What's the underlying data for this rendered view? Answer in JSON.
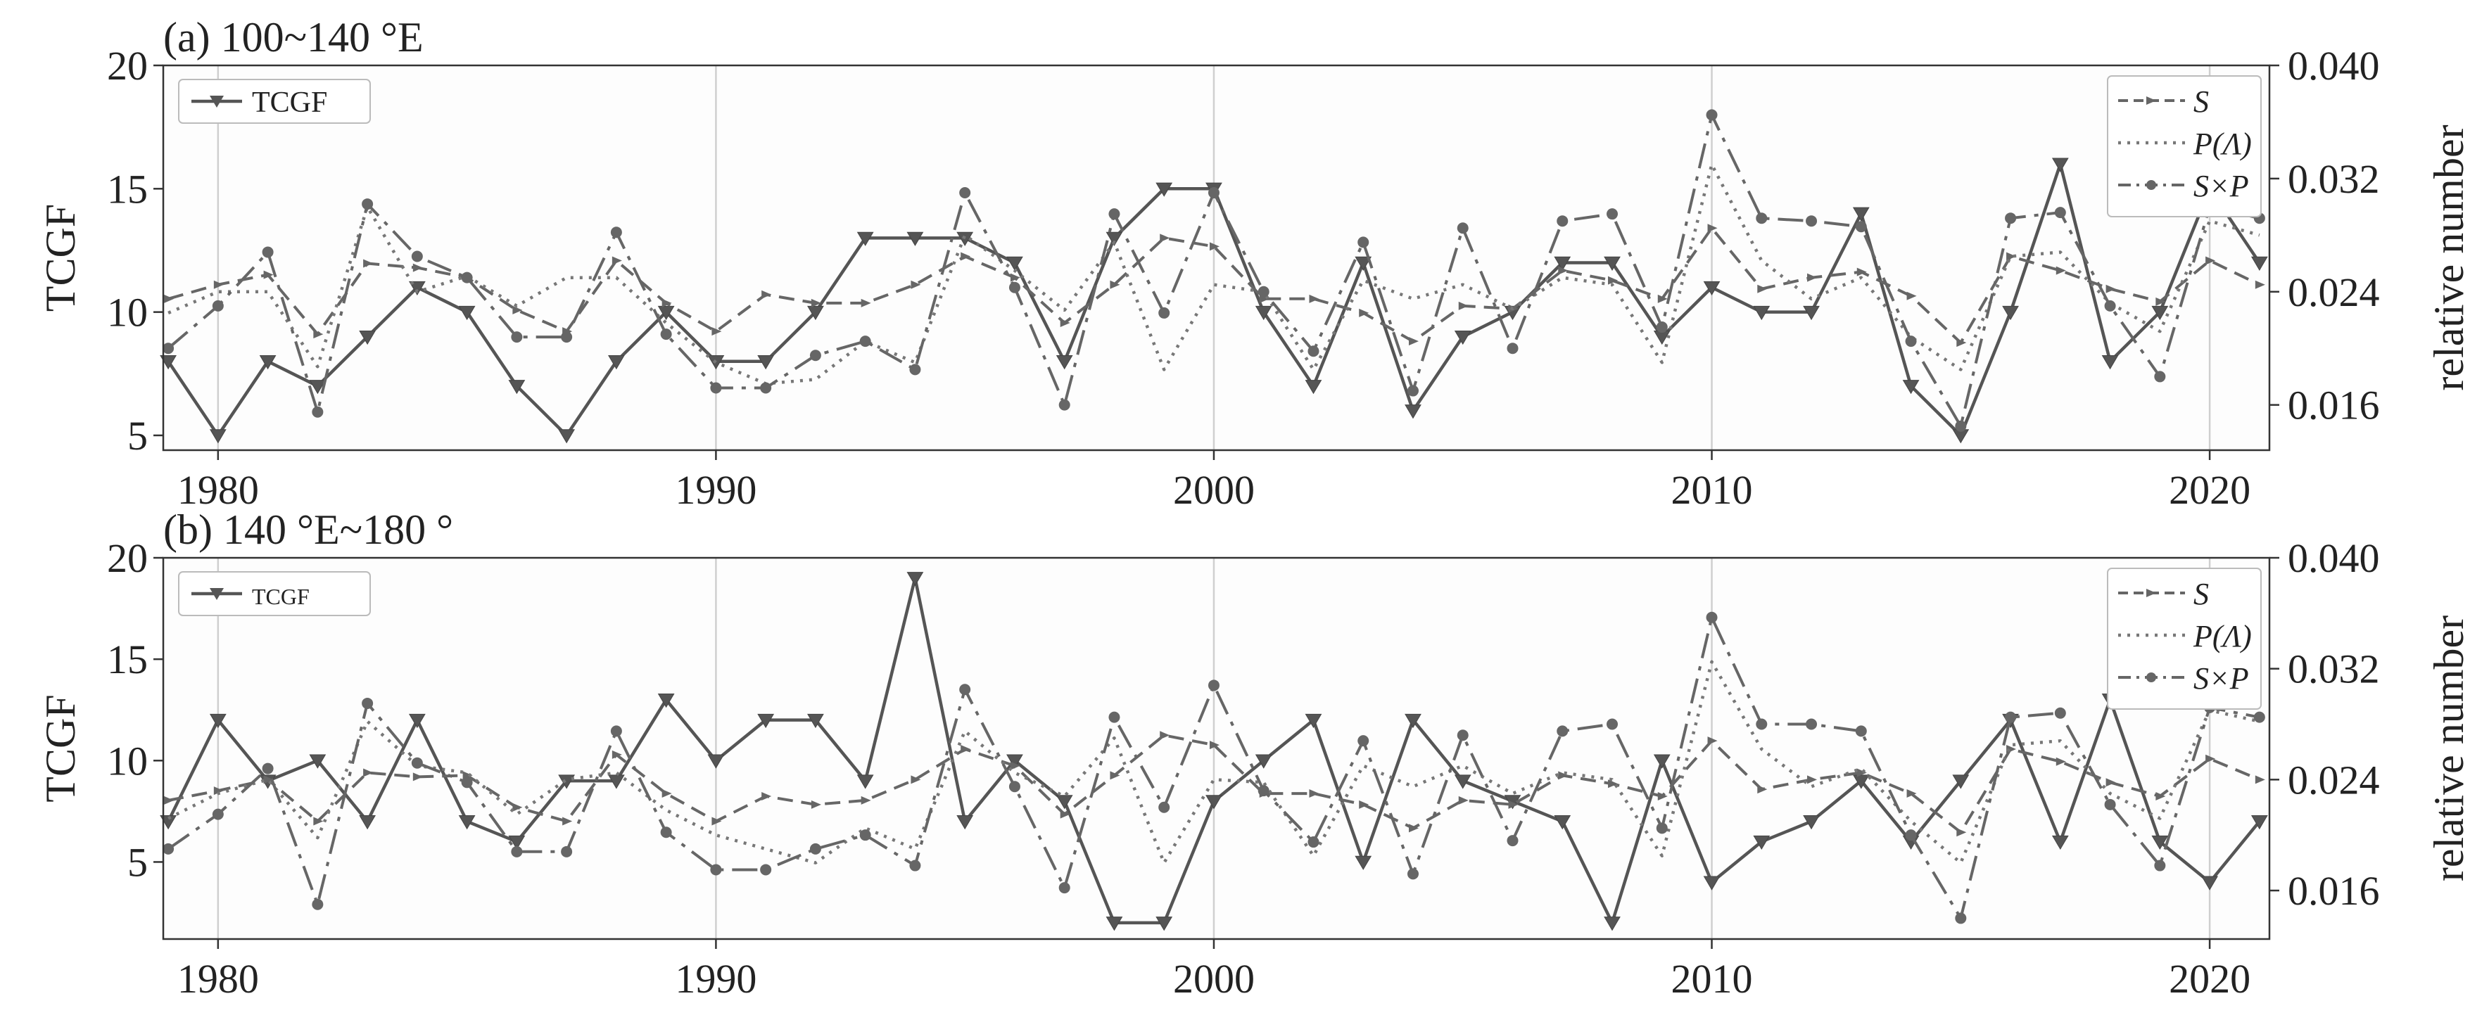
{
  "chart_data": [
    {
      "type": "line",
      "title": "(a)  100~140 °E",
      "xlim": [
        1978.9,
        2021.2
      ],
      "x_ticks": [
        1980,
        1990,
        2000,
        2010,
        2020
      ],
      "left_axis": {
        "label": "TCGF",
        "ylim": [
          4.4,
          20
        ],
        "ticks": [
          5,
          10,
          15,
          20
        ]
      },
      "right_axis": {
        "label": "relative number",
        "ylim": [
          0.0128,
          0.04
        ],
        "ticks": [
          "0.016",
          "0.024",
          "0.032",
          "0.040"
        ]
      },
      "grid": "vertical at decades",
      "legend_left": {
        "position": "top-left",
        "entries": [
          "TCGF"
        ]
      },
      "legend_right": {
        "position": "top-right",
        "entries": [
          "S",
          "P(Λ)",
          "S×P"
        ]
      },
      "years": [
        1979,
        1980,
        1981,
        1982,
        1983,
        1984,
        1985,
        1986,
        1987,
        1988,
        1989,
        1990,
        1991,
        1992,
        1993,
        1994,
        1995,
        1996,
        1997,
        1998,
        1999,
        2000,
        2001,
        2002,
        2003,
        2004,
        2005,
        2006,
        2007,
        2008,
        2009,
        2010,
        2011,
        2012,
        2013,
        2014,
        2015,
        2016,
        2017,
        2018,
        2019,
        2020,
        2021
      ],
      "series": [
        {
          "name": "TCGF",
          "axis": "left",
          "style": "solid-triangle",
          "values": [
            8,
            5,
            8,
            7,
            9,
            11,
            10,
            7,
            5,
            8,
            10,
            8,
            8,
            10,
            13,
            13,
            13,
            12,
            8,
            13,
            15,
            15,
            10,
            7,
            12,
            6,
            9,
            10,
            12,
            12,
            9,
            11,
            10,
            10,
            14,
            7,
            5,
            10,
            16,
            8,
            10,
            15,
            12
          ]
        },
        {
          "name": "S",
          "axis": "right",
          "style": "dash-arrow",
          "values": [
            0.0235,
            0.0245,
            0.0252,
            0.021,
            0.026,
            0.0257,
            0.025,
            0.0227,
            0.0212,
            0.0262,
            0.0232,
            0.0212,
            0.0238,
            0.0232,
            0.0232,
            0.0245,
            0.0265,
            0.025,
            0.0218,
            0.0245,
            0.0278,
            0.0272,
            0.0235,
            0.0235,
            0.0225,
            0.0205,
            0.023,
            0.0228,
            0.0255,
            0.0248,
            0.0235,
            0.0285,
            0.0242,
            0.025,
            0.0254,
            0.0237,
            0.0204,
            0.0265,
            0.0255,
            0.0242,
            0.0233,
            0.0262,
            0.0245
          ]
        },
        {
          "name": "P(Λ)",
          "axis": "right",
          "style": "dotted",
          "values": [
            0.0225,
            0.024,
            0.024,
            0.0187,
            0.03,
            0.024,
            0.0251,
            0.023,
            0.025,
            0.025,
            0.0218,
            0.019,
            0.0175,
            0.0178,
            0.0205,
            0.019,
            0.028,
            0.0255,
            0.0227,
            0.0275,
            0.0185,
            0.0245,
            0.024,
            0.0185,
            0.0248,
            0.0235,
            0.0245,
            0.0228,
            0.025,
            0.0245,
            0.019,
            0.033,
            0.0262,
            0.0235,
            0.025,
            0.0208,
            0.0185,
            0.0265,
            0.0268,
            0.0232,
            0.0212,
            0.029,
            0.028
          ]
        },
        {
          "name": "S×P",
          "axis": "right",
          "style": "dashdot-circle",
          "values": [
            0.02,
            0.023,
            0.0268,
            0.0155,
            0.0302,
            0.0265,
            0.025,
            0.0208,
            0.0208,
            0.0282,
            0.021,
            0.0172,
            0.0172,
            0.0195,
            0.0205,
            0.0185,
            0.031,
            0.0243,
            0.016,
            0.0295,
            0.0225,
            0.031,
            0.024,
            0.0198,
            0.0275,
            0.017,
            0.0285,
            0.02,
            0.029,
            0.0295,
            0.0215,
            0.0365,
            0.0292,
            0.029,
            0.0286,
            0.0205,
            0.0145,
            0.0292,
            0.0296,
            0.023,
            0.018,
            0.03,
            0.0292
          ]
        }
      ]
    },
    {
      "type": "line",
      "title": "(b)  140 °E~180 °",
      "xlim": [
        1978.9,
        2021.2
      ],
      "x_ticks": [
        1980,
        1990,
        2000,
        2010,
        2020
      ],
      "left_axis": {
        "label": "TCGF",
        "ylim": [
          1.2,
          20
        ],
        "ticks": [
          5,
          10,
          15,
          20
        ]
      },
      "right_axis": {
        "label": "relative number",
        "ylim": [
          0.0125,
          0.04
        ],
        "ticks": [
          "0.016",
          "0.024",
          "0.032",
          "0.040"
        ]
      },
      "grid": "vertical at decades",
      "legend_left": {
        "position": "top-left",
        "entries": [
          "TCGF"
        ]
      },
      "legend_right": {
        "position": "top-right",
        "entries": [
          "S",
          "P(Λ)",
          "S×P"
        ]
      },
      "years": [
        1979,
        1980,
        1981,
        1982,
        1983,
        1984,
        1985,
        1986,
        1987,
        1988,
        1989,
        1990,
        1991,
        1992,
        1993,
        1994,
        1995,
        1996,
        1997,
        1998,
        1999,
        2000,
        2001,
        2002,
        2003,
        2004,
        2005,
        2006,
        2007,
        2008,
        2009,
        2010,
        2011,
        2012,
        2013,
        2014,
        2015,
        2016,
        2017,
        2018,
        2019,
        2020,
        2021
      ],
      "series": [
        {
          "name": "TCGF",
          "axis": "left",
          "style": "solid-triangle",
          "values": [
            7,
            12,
            9,
            10,
            7,
            12,
            7,
            6,
            9,
            9,
            13,
            10,
            12,
            12,
            9,
            19,
            7,
            10,
            8,
            2,
            2,
            8,
            10,
            12,
            5,
            12,
            9,
            8,
            7,
            2,
            10,
            4,
            6,
            7,
            9,
            6,
            9,
            12,
            6,
            13,
            6,
            4,
            7
          ]
        },
        {
          "name": "S",
          "axis": "right",
          "style": "dash-arrow",
          "values": [
            0.0225,
            0.0232,
            0.024,
            0.021,
            0.0245,
            0.0242,
            0.0243,
            0.022,
            0.021,
            0.0258,
            0.023,
            0.021,
            0.0228,
            0.0222,
            0.0225,
            0.024,
            0.0262,
            0.025,
            0.0215,
            0.0243,
            0.0272,
            0.0265,
            0.023,
            0.023,
            0.0222,
            0.0205,
            0.0225,
            0.0222,
            0.0243,
            0.0237,
            0.0228,
            0.0268,
            0.0233,
            0.024,
            0.0245,
            0.023,
            0.0202,
            0.0262,
            0.0253,
            0.0238,
            0.0228,
            0.0255,
            0.024
          ]
        },
        {
          "name": "P(Λ)",
          "axis": "right",
          "style": "dotted",
          "values": [
            0.0212,
            0.023,
            0.024,
            0.0198,
            0.0282,
            0.025,
            0.0245,
            0.0215,
            0.024,
            0.0245,
            0.0218,
            0.02,
            0.019,
            0.018,
            0.0205,
            0.019,
            0.0275,
            0.0245,
            0.0228,
            0.027,
            0.018,
            0.024,
            0.0238,
            0.0185,
            0.025,
            0.0235,
            0.025,
            0.023,
            0.0245,
            0.024,
            0.0185,
            0.0325,
            0.0262,
            0.0235,
            0.0248,
            0.021,
            0.018,
            0.0265,
            0.0268,
            0.023,
            0.0212,
            0.029,
            0.0282
          ]
        },
        {
          "name": "S×P",
          "axis": "right",
          "style": "dashdot-circle",
          "values": [
            0.019,
            0.0215,
            0.0248,
            0.015,
            0.0295,
            0.0252,
            0.0238,
            0.0188,
            0.0188,
            0.0275,
            0.0202,
            0.0175,
            0.0175,
            0.019,
            0.02,
            0.0178,
            0.0305,
            0.0235,
            0.0162,
            0.0285,
            0.022,
            0.0308,
            0.0232,
            0.0195,
            0.0268,
            0.0172,
            0.0272,
            0.0196,
            0.0275,
            0.028,
            0.0205,
            0.0357,
            0.028,
            0.028,
            0.0275,
            0.02,
            0.014,
            0.0285,
            0.0288,
            0.0222,
            0.0178,
            0.0292,
            0.0285
          ]
        }
      ]
    }
  ]
}
